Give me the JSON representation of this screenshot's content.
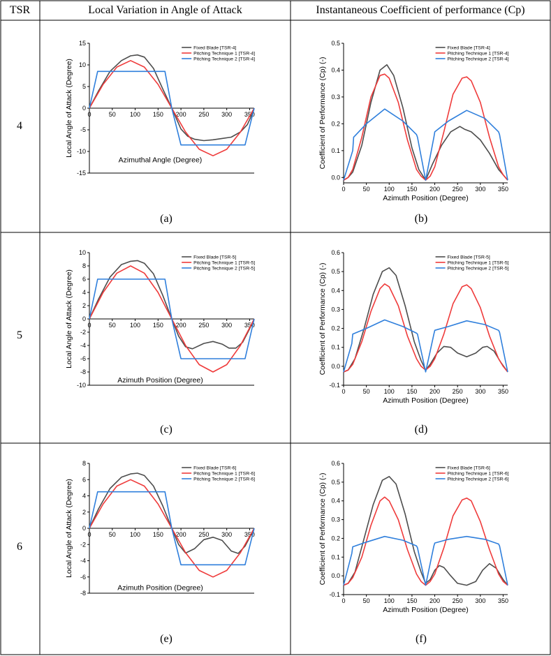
{
  "table": {
    "headers": {
      "tsr": "TSR",
      "angle": "Local Variation in Angle of Attack",
      "cp": "Instantaneous Coefficient of performance (Cp)"
    },
    "rows": [
      {
        "tsr": "4",
        "left_label": "(a)",
        "right_label": "(b)"
      },
      {
        "tsr": "5",
        "left_label": "(c)",
        "right_label": "(d)"
      },
      {
        "tsr": "6",
        "left_label": "(e)",
        "right_label": "(f)"
      }
    ]
  },
  "colors": {
    "fixed": "#4d4d4d",
    "pt1": "#ef3b3b",
    "pt2": "#2f7fdc"
  },
  "chart_data": [
    {
      "id": "a",
      "type": "line",
      "title": "",
      "xlabel": "Azimuthal Angle (Degree)",
      "ylabel": "Local Angle of Attack (Degree)",
      "xlim": [
        0,
        360
      ],
      "ylim": [
        -15,
        15
      ],
      "xticks": [
        "0",
        "50",
        "100",
        "150",
        "200",
        "250",
        "300",
        "350"
      ],
      "yticks": [
        "-15",
        "-10",
        "-5",
        "0",
        "5",
        "10",
        "15"
      ],
      "legend": [
        "Fixed Blade [TSR-4]",
        "Pitching Technique 1 [TSR-4]",
        "Pitching Technique 2 [TSR-4]"
      ],
      "legend_position": "top-right",
      "series": [
        {
          "name": "Fixed Blade [TSR-4]",
          "x": [
            0,
            20,
            45,
            70,
            90,
            105,
            120,
            140,
            160,
            180,
            200,
            215,
            230,
            250,
            270,
            290,
            310,
            330,
            345,
            355,
            360
          ],
          "y": [
            0,
            4,
            8.5,
            11,
            12.1,
            12.3,
            11.8,
            9.2,
            4.5,
            0,
            -4.8,
            -6.5,
            -7.2,
            -7.5,
            -7.3,
            -7,
            -6.7,
            -5.5,
            -3.8,
            -1.5,
            0
          ]
        },
        {
          "name": "Pitching Technique 1 [TSR-4]",
          "x": [
            0,
            30,
            60,
            90,
            120,
            150,
            180,
            210,
            240,
            270,
            300,
            330,
            360
          ],
          "y": [
            0,
            5.5,
            9.5,
            11,
            9.5,
            5.5,
            0,
            -5.5,
            -9.5,
            -11,
            -9.5,
            -5.5,
            0
          ]
        },
        {
          "name": "Pitching Technique 2 [TSR-4]",
          "x": [
            0,
            18,
            165,
            180,
            200,
            340,
            360
          ],
          "y": [
            0,
            8.5,
            8.5,
            0,
            -8.5,
            -8.5,
            0
          ]
        }
      ]
    },
    {
      "id": "b",
      "type": "line",
      "title": "",
      "xlabel": "Azimuth Position (Degree)",
      "ylabel": "Coefficient of Performance (Cp) (-)",
      "xlim": [
        0,
        360
      ],
      "ylim": [
        -0.02,
        0.5
      ],
      "xticks": [
        "0",
        "50",
        "100",
        "150",
        "200",
        "250",
        "300",
        "350"
      ],
      "yticks": [
        "0.0",
        "0.1",
        "0.2",
        "0.3",
        "0.4",
        "0.5"
      ],
      "legend": [
        "Fixed Blade [TSR-4]",
        "Pitching Technique 1 [TSR-4]",
        "Pitching Technique 2 [TSR-4]"
      ],
      "legend_position": "top-right",
      "series": [
        {
          "name": "Fixed Blade [TSR-4]",
          "x": [
            0,
            10,
            20,
            40,
            60,
            80,
            95,
            110,
            130,
            150,
            165,
            180,
            195,
            215,
            235,
            255,
            265,
            280,
            300,
            320,
            340,
            360
          ],
          "y": [
            -0.01,
            0,
            0.02,
            0.12,
            0.28,
            0.4,
            0.42,
            0.38,
            0.26,
            0.11,
            0.03,
            -0.01,
            0.05,
            0.12,
            0.17,
            0.19,
            0.18,
            0.17,
            0.14,
            0.09,
            0.03,
            -0.01
          ]
        },
        {
          "name": "Pitching Technique 1 [TSR-4]",
          "x": [
            0,
            10,
            20,
            40,
            60,
            80,
            90,
            100,
            120,
            140,
            160,
            170,
            180,
            190,
            200,
            220,
            240,
            260,
            270,
            280,
            300,
            320,
            340,
            350,
            360
          ],
          "y": [
            -0.01,
            0,
            0.03,
            0.15,
            0.3,
            0.38,
            0.385,
            0.37,
            0.28,
            0.14,
            0.03,
            0.005,
            -0.01,
            0.005,
            0.04,
            0.17,
            0.31,
            0.37,
            0.375,
            0.36,
            0.28,
            0.15,
            0.04,
            0.01,
            -0.01
          ]
        },
        {
          "name": "Pitching Technique 2 [TSR-4]",
          "x": [
            0,
            20,
            22,
            50,
            90,
            130,
            160,
            162,
            180,
            198,
            200,
            230,
            270,
            310,
            340,
            342,
            360
          ],
          "y": [
            -0.01,
            0.1,
            0.15,
            0.2,
            0.255,
            0.21,
            0.16,
            0.15,
            -0.01,
            0.15,
            0.17,
            0.21,
            0.25,
            0.22,
            0.17,
            0.16,
            -0.01
          ]
        }
      ]
    },
    {
      "id": "c",
      "type": "line",
      "title": "",
      "xlabel": "Azimuth Position (Degree)",
      "ylabel": "Local Angle of Attack (Degree)",
      "xlim": [
        0,
        360
      ],
      "ylim": [
        -10,
        10
      ],
      "xticks": [
        "0",
        "50",
        "100",
        "150",
        "200",
        "250",
        "300",
        "350"
      ],
      "yticks": [
        "-10",
        "-8",
        "-6",
        "-4",
        "-2",
        "0",
        "2",
        "4",
        "6",
        "8",
        "10"
      ],
      "legend": [
        "Fixed Blade [TSR-5]",
        "Pitching Technique 1 [TSR-5]",
        "Pitching Technique 2 [TSR-5]"
      ],
      "legend_position": "top-right",
      "series": [
        {
          "name": "Fixed Blade [TSR-5]",
          "x": [
            0,
            20,
            45,
            70,
            90,
            105,
            120,
            140,
            160,
            180,
            195,
            210,
            225,
            250,
            270,
            290,
            305,
            320,
            335,
            350,
            360
          ],
          "y": [
            0,
            3,
            6.3,
            8.2,
            8.7,
            8.8,
            8.4,
            6.8,
            3.6,
            0,
            -2.6,
            -4.2,
            -4.5,
            -3.7,
            -3.4,
            -3.8,
            -4.4,
            -4.4,
            -3.5,
            -1.5,
            0
          ]
        },
        {
          "name": "Pitching Technique 1 [TSR-5]",
          "x": [
            0,
            30,
            60,
            90,
            120,
            150,
            180,
            210,
            240,
            270,
            300,
            330,
            360
          ],
          "y": [
            0,
            4,
            6.9,
            8,
            6.9,
            4,
            0,
            -4,
            -6.9,
            -8,
            -6.9,
            -4,
            0
          ]
        },
        {
          "name": "Pitching Technique 2 [TSR-5]",
          "x": [
            0,
            18,
            165,
            180,
            200,
            340,
            360
          ],
          "y": [
            0,
            6,
            6,
            0,
            -6,
            -6,
            0
          ]
        }
      ]
    },
    {
      "id": "d",
      "type": "line",
      "title": "",
      "xlabel": "Azimuth Position (Degree)",
      "ylabel": "Coefficient of Performance (Cp) (-)",
      "xlim": [
        0,
        360
      ],
      "ylim": [
        -0.1,
        0.6
      ],
      "xticks": [
        "0",
        "50",
        "100",
        "150",
        "200",
        "250",
        "300",
        "350"
      ],
      "yticks": [
        "-0.1",
        "0.0",
        "0.1",
        "0.2",
        "0.3",
        "0.4",
        "0.5",
        "0.6"
      ],
      "legend": [
        "Fixed Blade [TSR-5]",
        "Pitching Technique 1 [TSR-5]",
        "Pitching Technique 2 [TSR-5]"
      ],
      "legend_position": "top-right",
      "series": [
        {
          "name": "Fixed Blade [TSR-5]",
          "x": [
            0,
            10,
            25,
            45,
            65,
            85,
            100,
            115,
            135,
            155,
            170,
            180,
            190,
            205,
            220,
            235,
            250,
            270,
            290,
            305,
            315,
            330,
            345,
            360
          ],
          "y": [
            -0.03,
            -0.02,
            0.04,
            0.2,
            0.38,
            0.5,
            0.52,
            0.48,
            0.32,
            0.13,
            0.03,
            -0.02,
            0.01,
            0.07,
            0.105,
            0.1,
            0.07,
            0.05,
            0.07,
            0.1,
            0.105,
            0.08,
            0.02,
            -0.03
          ]
        },
        {
          "name": "Pitching Technique 1 [TSR-5]",
          "x": [
            0,
            10,
            20,
            40,
            60,
            80,
            90,
            100,
            120,
            140,
            160,
            170,
            180,
            190,
            200,
            220,
            240,
            260,
            270,
            280,
            300,
            320,
            340,
            350,
            360
          ],
          "y": [
            -0.03,
            -0.02,
            0.01,
            0.13,
            0.29,
            0.41,
            0.435,
            0.42,
            0.32,
            0.16,
            0.04,
            0,
            -0.02,
            0,
            0.04,
            0.17,
            0.33,
            0.42,
            0.43,
            0.41,
            0.31,
            0.16,
            0.04,
            0,
            -0.03
          ]
        },
        {
          "name": "Pitching Technique 2 [TSR-5]",
          "x": [
            0,
            18,
            20,
            50,
            90,
            130,
            160,
            162,
            180,
            198,
            200,
            230,
            270,
            310,
            340,
            342,
            360
          ],
          "y": [
            -0.03,
            0.12,
            0.17,
            0.2,
            0.245,
            0.21,
            0.175,
            0.17,
            -0.03,
            0.17,
            0.19,
            0.21,
            0.24,
            0.22,
            0.19,
            0.18,
            -0.03
          ]
        }
      ]
    },
    {
      "id": "e",
      "type": "line",
      "title": "",
      "xlabel": "Azimuth Position (Degree)",
      "ylabel": "Local Angle of Attack (Degree)",
      "xlim": [
        0,
        360
      ],
      "ylim": [
        -8,
        8
      ],
      "xticks": [
        "0",
        "50",
        "100",
        "150",
        "200",
        "250",
        "300",
        "350"
      ],
      "yticks": [
        "-8",
        "-6",
        "-4",
        "-2",
        "0",
        "2",
        "4",
        "6",
        "8"
      ],
      "legend": [
        "Fixed Blade [TSR-6]",
        "Pitching Technique 1 [TSR-6]",
        "Pitching Technique 2 [TSR-6]"
      ],
      "legend_position": "top-right",
      "series": [
        {
          "name": "Fixed Blade [TSR-6]",
          "x": [
            0,
            20,
            45,
            70,
            90,
            105,
            120,
            140,
            160,
            180,
            195,
            210,
            230,
            250,
            270,
            290,
            310,
            325,
            340,
            355,
            360
          ],
          "y": [
            0,
            2.4,
            4.9,
            6.3,
            6.7,
            6.8,
            6.5,
            5.2,
            2.8,
            0,
            -2,
            -3.05,
            -2.5,
            -1.4,
            -1.1,
            -1.5,
            -2.8,
            -3.1,
            -2.2,
            -0.6,
            0
          ]
        },
        {
          "name": "Pitching Technique 1 [TSR-6]",
          "x": [
            0,
            30,
            60,
            90,
            120,
            150,
            180,
            210,
            240,
            270,
            300,
            330,
            360
          ],
          "y": [
            0,
            3,
            5.2,
            6,
            5.2,
            3,
            0,
            -3,
            -5.2,
            -6,
            -5.2,
            -3,
            0
          ]
        },
        {
          "name": "Pitching Technique 2 [TSR-6]",
          "x": [
            0,
            18,
            165,
            180,
            200,
            340,
            360
          ],
          "y": [
            0,
            4.5,
            4.5,
            0,
            -4.5,
            -4.5,
            0
          ]
        }
      ]
    },
    {
      "id": "f",
      "type": "line",
      "title": "",
      "xlabel": "Azimuth Position (Degree)",
      "ylabel": "Coefficient of Performance (Cp) (-)",
      "xlim": [
        0,
        360
      ],
      "ylim": [
        -0.1,
        0.6
      ],
      "xticks": [
        "0",
        "50",
        "100",
        "150",
        "200",
        "250",
        "300",
        "350"
      ],
      "yticks": [
        "-0.1",
        "0.0",
        "0.1",
        "0.2",
        "0.3",
        "0.4",
        "0.5",
        "0.6"
      ],
      "legend": [
        "Fixed Blade [TSR-6]",
        "Pitching Technique 1 [TSR-6]",
        "Pitching Technique 2 [TSR-6]"
      ],
      "legend_position": "top-right",
      "series": [
        {
          "name": "Fixed Blade [TSR-6]",
          "x": [
            0,
            10,
            25,
            45,
            65,
            85,
            100,
            115,
            135,
            155,
            170,
            180,
            190,
            200,
            210,
            220,
            235,
            250,
            270,
            290,
            305,
            320,
            335,
            350,
            360
          ],
          "y": [
            -0.05,
            -0.04,
            0.02,
            0.2,
            0.38,
            0.51,
            0.53,
            0.49,
            0.33,
            0.13,
            0.02,
            -0.04,
            -0.02,
            0.03,
            0.055,
            0.045,
            0,
            -0.04,
            -0.05,
            -0.03,
            0.03,
            0.065,
            0.04,
            -0.02,
            -0.05
          ]
        },
        {
          "name": "Pitching Technique 1 [TSR-6]",
          "x": [
            0,
            10,
            20,
            40,
            60,
            80,
            90,
            100,
            120,
            140,
            160,
            170,
            180,
            190,
            200,
            220,
            240,
            260,
            270,
            280,
            300,
            320,
            340,
            350,
            360
          ],
          "y": [
            -0.05,
            -0.04,
            -0.01,
            0.1,
            0.27,
            0.4,
            0.42,
            0.4,
            0.3,
            0.14,
            0.01,
            -0.03,
            -0.05,
            -0.03,
            0.01,
            0.15,
            0.32,
            0.405,
            0.415,
            0.4,
            0.29,
            0.14,
            0.01,
            -0.03,
            -0.05
          ]
        },
        {
          "name": "Pitching Technique 2 [TSR-6]",
          "x": [
            0,
            18,
            20,
            50,
            90,
            130,
            160,
            162,
            180,
            198,
            200,
            230,
            270,
            310,
            340,
            342,
            360
          ],
          "y": [
            -0.05,
            0.12,
            0.155,
            0.18,
            0.21,
            0.19,
            0.16,
            0.15,
            -0.05,
            0.16,
            0.175,
            0.195,
            0.21,
            0.195,
            0.17,
            0.16,
            -0.05
          ]
        }
      ]
    }
  ]
}
